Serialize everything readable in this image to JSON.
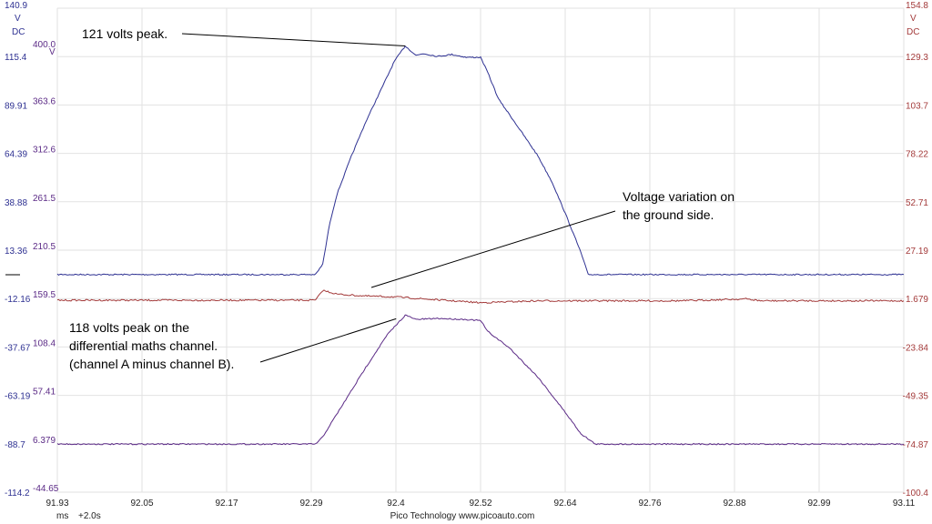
{
  "chart_data": {
    "type": "line",
    "grid": true,
    "axes": {
      "x": {
        "unit": "ms",
        "offset": "+2.0s",
        "range": [
          91.93,
          93.11
        ],
        "ticks": [
          "91.93",
          "92.05",
          "92.17",
          "92.29",
          "92.4",
          "92.52",
          "92.64",
          "92.76",
          "92.88",
          "92.99",
          "93.11"
        ]
      },
      "y_left_a": {
        "unit_top": "V",
        "unit_bottom": "DC",
        "color": "#2e3192",
        "range": [
          -114.2,
          140.9
        ],
        "ticks": [
          "140.9",
          "115.4",
          "89.91",
          "64.39",
          "38.88",
          "13.36",
          "-12.16",
          "-37.67",
          "-63.19",
          "-88.7",
          "-114.2"
        ]
      },
      "y_left_math": {
        "unit": "V",
        "color": "#5b2a86",
        "range": [
          -44.65,
          400.0
        ],
        "ticks": [
          "400.0",
          "363.6",
          "312.6",
          "261.5",
          "210.5",
          "159.5",
          "108.4",
          "57.41",
          "6.379",
          "-44.65"
        ]
      },
      "y_right_b": {
        "unit_top": "V",
        "unit_bottom": "DC",
        "color": "#a33a3a",
        "range": [
          -100.4,
          154.8
        ],
        "ticks": [
          "154.8",
          "129.3",
          "103.7",
          "78.22",
          "52.71",
          "27.19",
          "1.679",
          "-23.84",
          "-49.35",
          "-74.87",
          "-100.4"
        ]
      }
    },
    "series": [
      {
        "color": "#2e3192",
        "axis": "y_left_a",
        "x": [
          91.93,
          92.28,
          92.29,
          92.3,
          92.31,
          92.32,
          92.34,
          92.36,
          92.38,
          92.4,
          92.415,
          92.43,
          92.44,
          92.46,
          92.48,
          92.5,
          92.52,
          92.53,
          92.545,
          92.56,
          92.58,
          92.6,
          92.62,
          92.64,
          92.66,
          92.67,
          92.69,
          93.11
        ],
        "y": [
          0.5,
          0.5,
          0.5,
          6,
          28,
          43,
          63,
          81,
          97,
          113,
          121,
          116,
          117,
          115.5,
          116.5,
          115,
          115,
          107,
          93,
          85,
          74,
          63,
          49,
          31,
          12,
          0.5,
          0.5,
          0.5
        ]
      },
      {
        "color": "#a33a3a",
        "axis": "y_right_b",
        "x": [
          91.93,
          92.28,
          92.29,
          92.3,
          92.32,
          92.36,
          92.4,
          92.44,
          92.52,
          92.6,
          92.8,
          92.89,
          92.91,
          93.11
        ],
        "y": [
          0.8,
          0.8,
          0.8,
          6.0,
          4.0,
          3.0,
          2.6,
          1.5,
          -0.5,
          0.5,
          0.5,
          1.5,
          0.5,
          0.5
        ]
      },
      {
        "color": "#5b2a86",
        "axis": "y_left_math",
        "x": [
          91.93,
          92.28,
          92.29,
          92.3,
          92.31,
          92.33,
          92.36,
          92.39,
          92.415,
          92.43,
          92.46,
          92.5,
          92.52,
          92.53,
          92.56,
          92.6,
          92.64,
          92.66,
          92.68,
          93.11
        ],
        "y": [
          -0.5,
          -0.5,
          -0.5,
          6,
          17,
          38,
          70,
          100,
          118,
          114,
          115,
          114,
          113,
          103,
          88,
          61,
          27,
          9,
          -0.5,
          -0.5
        ]
      }
    ],
    "annotations": [
      {
        "text": "121 volts peak.",
        "target_x": 92.415,
        "target_axis": "y_left_a",
        "target_y": 121
      },
      {
        "text": "Voltage variation on",
        "text2": "the ground side.",
        "target_x": 92.36,
        "target_axis": "y_right_b",
        "target_y": 3.0
      },
      {
        "text": "118 volts peak on the",
        "text2": "differential maths channel.",
        "text3": "(channel A minus channel B).",
        "target_x": 92.415,
        "target_axis": "y_left_math",
        "target_y": 118
      }
    ]
  },
  "footer": {
    "brand": "Pico Technology   www.picoauto.com"
  }
}
